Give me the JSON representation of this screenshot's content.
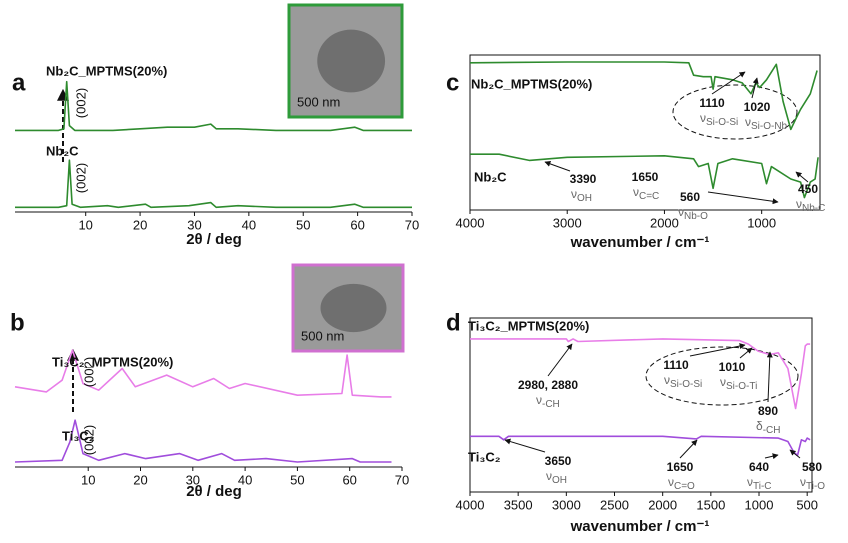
{
  "chart_data": [
    {
      "type": "line",
      "panel": "a",
      "x_label": "2θ / deg",
      "xlim": [
        -3,
        70
      ],
      "xticks": [
        10,
        20,
        30,
        40,
        50,
        60,
        70
      ],
      "ylim": [
        0,
        100
      ],
      "box": false,
      "inset_scale": "500 nm",
      "series": [
        {
          "name": "Nb₂C_MPTMS(20%)",
          "color": "#2e8b2e",
          "x": [
            -3,
            5,
            6,
            6.5,
            7,
            8,
            10,
            15,
            20,
            25,
            30,
            33,
            34,
            38,
            45,
            55,
            59.5,
            61,
            70
          ],
          "values": [
            52,
            52,
            53,
            83,
            55,
            52,
            52,
            52,
            53,
            54,
            54,
            56,
            53,
            53,
            52,
            52,
            54,
            52,
            52
          ]
        },
        {
          "name": "Nb₂C",
          "color": "#2e8b2e",
          "x": [
            -3,
            5,
            6.5,
            7,
            7.5,
            9,
            14,
            16,
            21,
            22,
            29,
            33,
            34,
            38,
            45,
            55,
            59.5,
            61,
            70
          ],
          "values": [
            3,
            3,
            4,
            33,
            5,
            3,
            4,
            3,
            5,
            3,
            4,
            6,
            3,
            4,
            3,
            3,
            5,
            3,
            3
          ]
        }
      ],
      "annotations": [
        {
          "label": "(002)"
        },
        {
          "label": "(002)"
        }
      ]
    },
    {
      "type": "line",
      "panel": "b",
      "x_label": "2θ / deg",
      "xlim": [
        -4,
        70
      ],
      "xticks": [
        10,
        20,
        30,
        40,
        50,
        60,
        70
      ],
      "ylim": [
        0,
        100
      ],
      "box": false,
      "inset_scale": "500 nm",
      "series": [
        {
          "name": "Ti₃C₂_MPTMS(20%)",
          "color": "#e87de8",
          "x": [
            -4,
            2,
            5,
            7,
            9,
            12,
            16.5,
            19,
            25,
            30,
            34,
            37,
            40,
            50,
            58.5,
            59.5,
            60.5,
            66,
            68
          ],
          "values": [
            48,
            45,
            52,
            70,
            50,
            46,
            59,
            48,
            55,
            48,
            53,
            47,
            50,
            43,
            44,
            67,
            43,
            42,
            42
          ]
        },
        {
          "name": "Ti₃C₂",
          "color": "#a04ddc",
          "x": [
            -4,
            5,
            6.5,
            7.5,
            9,
            12,
            17,
            21,
            27.5,
            31,
            35.5,
            38,
            44,
            50,
            60.5,
            62,
            68
          ],
          "values": [
            3,
            4,
            15,
            28,
            8,
            4,
            8,
            5,
            8,
            4,
            8,
            4,
            5,
            3,
            5,
            3,
            3
          ]
        }
      ],
      "annotations": [
        {
          "label": "(002)"
        },
        {
          "label": "(002)"
        }
      ]
    },
    {
      "type": "line",
      "panel": "c",
      "x_label": "wavenumber / cm⁻¹",
      "xlim": [
        4000,
        400
      ],
      "xticks": [
        4000,
        3000,
        2000,
        1000
      ],
      "ylim": [
        0,
        100
      ],
      "box": true,
      "series": [
        {
          "name": "Nb₂C_MPTMS(20%)",
          "color": "#2e8b2e",
          "x": [
            4000,
            3000,
            2000,
            1750,
            1700,
            1600,
            1520,
            1500,
            1480,
            1300,
            1200,
            1110,
            1060,
            1020,
            950,
            850,
            780,
            700,
            640,
            600,
            500,
            430
          ],
          "values": [
            95,
            95.5,
            95.5,
            95,
            87,
            86,
            86,
            78,
            86,
            84,
            82,
            75,
            82,
            79,
            84,
            94,
            70,
            52,
            60,
            65,
            75,
            90
          ]
        },
        {
          "name": "Nb₂C",
          "color": "#2e8b2e",
          "x": [
            4000,
            3700,
            3390,
            3000,
            2000,
            1700,
            1650,
            1550,
            1500,
            1450,
            1300,
            1000,
            950,
            900,
            850,
            700,
            600,
            560,
            500,
            450,
            420
          ],
          "values": [
            36,
            36,
            32,
            34,
            35,
            33,
            28,
            30,
            14,
            30,
            33,
            30,
            17,
            28,
            26,
            20,
            18,
            8,
            18,
            20,
            34
          ]
        }
      ],
      "annotations": [
        {
          "label": "1110",
          "symbol": "ν",
          "sub": "Si-O-Si"
        },
        {
          "label": "1020",
          "symbol": "ν",
          "sub": "Si-O-Nb"
        },
        {
          "label": "3390",
          "symbol": "ν",
          "sub": "OH"
        },
        {
          "label": "1650",
          "symbol": "ν",
          "sub": "C=C"
        },
        {
          "label": "560",
          "symbol": "ν",
          "sub": "Nb-O"
        },
        {
          "label": "450",
          "symbol": "ν",
          "sub": "Nb-C"
        }
      ]
    },
    {
      "type": "line",
      "panel": "d",
      "x_label": "wavenumber / cm⁻¹",
      "xlim": [
        4000,
        450
      ],
      "xticks": [
        4000,
        3500,
        3000,
        2500,
        2000,
        1500,
        1000,
        500
      ],
      "ylim": [
        0,
        100
      ],
      "box": true,
      "series": [
        {
          "name": "Ti₃C₂_MPTMS(20%)",
          "color": "#e87de8",
          "x": [
            4000,
            3000,
            2980,
            2930,
            2880,
            2000,
            1200,
            1110,
            1010,
            890,
            800,
            700,
            620,
            560,
            520,
            500,
            470
          ],
          "values": [
            88,
            88,
            86.5,
            88,
            86.5,
            88,
            87,
            85,
            81,
            79,
            80,
            71,
            48,
            68,
            84,
            85,
            85
          ]
        },
        {
          "name": "Ti₃C₂",
          "color": "#a04ddc",
          "x": [
            4000,
            3700,
            3650,
            3600,
            2000,
            1650,
            1600,
            800,
            700,
            640,
            600,
            560,
            520,
            500,
            470
          ],
          "values": [
            32,
            32,
            30,
            32,
            32,
            30.5,
            32,
            31,
            29,
            23,
            21,
            30,
            29,
            31,
            30
          ]
        }
      ],
      "annotations": [
        {
          "label": "2980, 2880",
          "symbol": "ν",
          "sub": "-CH"
        },
        {
          "label": "1110",
          "symbol": "ν",
          "sub": "Si-O-Si"
        },
        {
          "label": "1010",
          "symbol": "ν",
          "sub": "Si-O-Ti"
        },
        {
          "label": "890",
          "symbol": "δ",
          "sub": "-CH"
        },
        {
          "label": "3650",
          "symbol": "ν",
          "sub": "OH"
        },
        {
          "label": "1650",
          "symbol": "ν",
          "sub": "C=O"
        },
        {
          "label": "640",
          "symbol": "ν",
          "sub": "Ti-C"
        },
        {
          "label": "580",
          "symbol": "ν",
          "sub": "Ti-O"
        }
      ]
    }
  ]
}
